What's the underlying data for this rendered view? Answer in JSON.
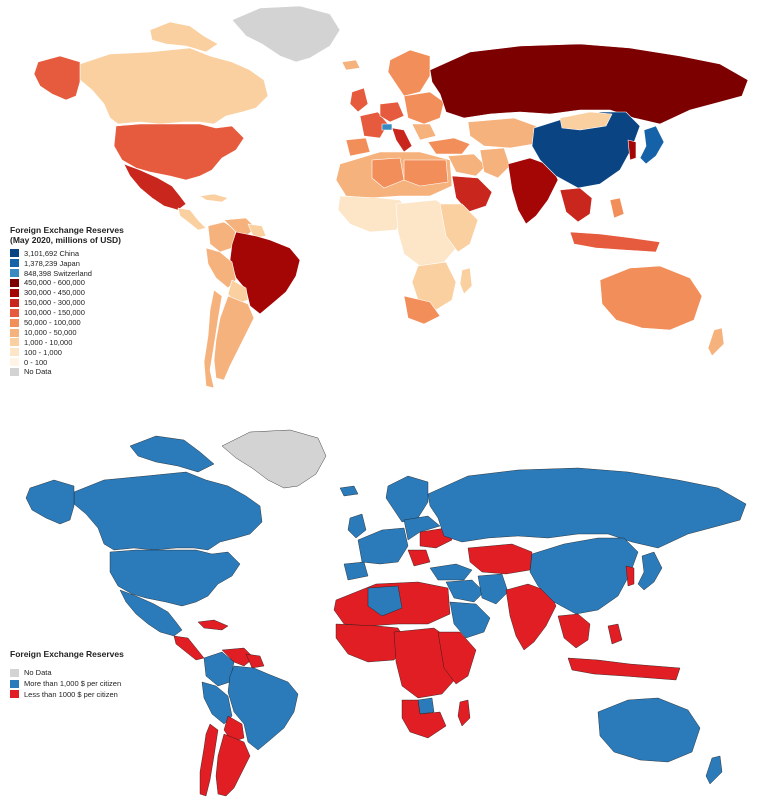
{
  "colors": {
    "c_china": "#0b4483",
    "c_japan": "#1662a9",
    "c_swiss": "#3a8ac2",
    "c_450": "#7d0000",
    "c_300": "#a40606",
    "c_150": "#c9271e",
    "c_100": "#e65a3e",
    "c_50": "#f28e5a",
    "c_10": "#f6b27d",
    "c_1000": "#fbd0a0",
    "c_100k": "#fde5c8",
    "c_0": "#fff4e6",
    "nodata": "#d3d3d3",
    "blue": "#2b7bba",
    "red": "#e01e24"
  },
  "top_map": {
    "legend_title": "Foreign Exchange Reserves (May 2020, millions of USD)",
    "legend": [
      {
        "label": "3,101,692 China",
        "color": "#0b4483"
      },
      {
        "label": "1,378,239 Japan",
        "color": "#1662a9"
      },
      {
        "label": "848,398 Switzerland",
        "color": "#3a8ac2"
      },
      {
        "label": "450,000 - 600,000",
        "color": "#7d0000"
      },
      {
        "label": "300,000 - 450,000",
        "color": "#a40606"
      },
      {
        "label": "150,000 - 300,000",
        "color": "#c9271e"
      },
      {
        "label": "100,000 - 150,000",
        "color": "#e65a3e"
      },
      {
        "label": "50,000 - 100,000",
        "color": "#f28e5a"
      },
      {
        "label": "10,000 - 50,000",
        "color": "#f6b27d"
      },
      {
        "label": "1,000 - 10,000",
        "color": "#fbd0a0"
      },
      {
        "label": "100 - 1,000",
        "color": "#fde5c8"
      },
      {
        "label": "0 - 100",
        "color": "#fff4e6"
      },
      {
        "label": "No Data",
        "color": "#d3d3d3"
      }
    ]
  },
  "bottom_map": {
    "legend_title": "Foreign Exchange Reserves",
    "legend": [
      {
        "label": "No Data",
        "color": "#d3d3d3"
      },
      {
        "label": "More than 1,000 $ per citizen",
        "color": "#2b7bba"
      },
      {
        "label": "Less than 1000 $ per citizen",
        "color": "#e01e24"
      }
    ]
  }
}
